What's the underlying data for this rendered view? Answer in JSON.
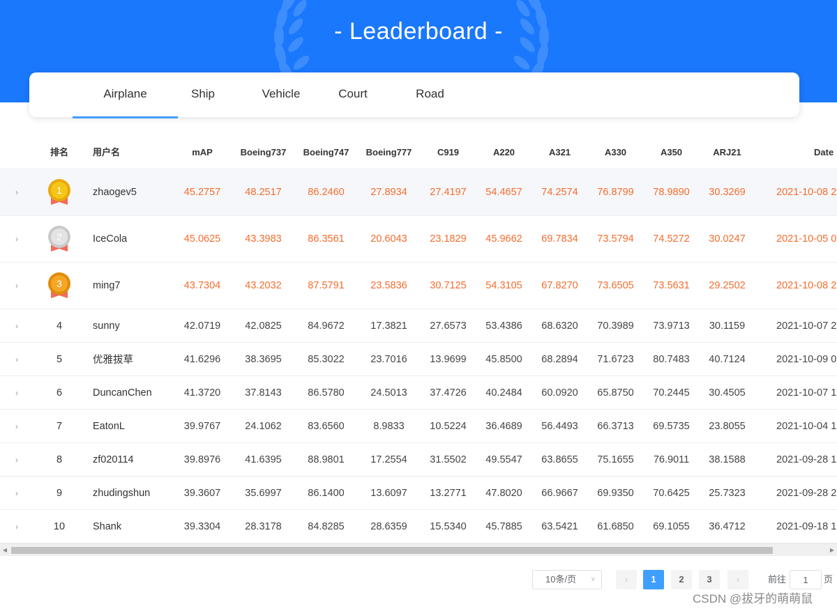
{
  "header": {
    "title": "- Leaderboard -"
  },
  "tabs": [
    {
      "label": "Airplane",
      "active": true
    },
    {
      "label": "Ship",
      "active": false
    },
    {
      "label": "Vehicle",
      "active": false
    },
    {
      "label": "Court",
      "active": false
    },
    {
      "label": "Road",
      "active": false
    }
  ],
  "table": {
    "columns": [
      "排名",
      "用户名",
      "mAP",
      "Boeing737",
      "Boeing747",
      "Boeing777",
      "C919",
      "A220",
      "A321",
      "A330",
      "A350",
      "ARJ21",
      "Date"
    ],
    "medals": [
      {
        "rank": "1",
        "color": "#f5c518",
        "ring": "#e8a90c"
      },
      {
        "rank": "2",
        "color": "#e3e3e3",
        "ring": "#c9c9c9"
      },
      {
        "rank": "3",
        "color": "#f5a623",
        "ring": "#e08c0b"
      }
    ],
    "ribbon_color": "#f26b5b",
    "rows": [
      {
        "rank": "1",
        "user": "zhaogev5",
        "values": [
          "45.2757",
          "48.2517",
          "86.2460",
          "27.8934",
          "27.4197",
          "54.4657",
          "74.2574",
          "76.8799",
          "78.9890",
          "30.3269"
        ],
        "date": "2021-10-08 2"
      },
      {
        "rank": "2",
        "user": "IceCola",
        "values": [
          "45.0625",
          "43.3983",
          "86.3561",
          "20.6043",
          "23.1829",
          "45.9662",
          "69.7834",
          "73.5794",
          "74.5272",
          "30.0247"
        ],
        "date": "2021-10-05 0"
      },
      {
        "rank": "3",
        "user": "ming7",
        "values": [
          "43.7304",
          "43.2032",
          "87.5791",
          "23.5836",
          "30.7125",
          "54.3105",
          "67.8270",
          "73.6505",
          "73.5631",
          "29.2502"
        ],
        "date": "2021-10-08 2"
      },
      {
        "rank": "4",
        "user": "sunny",
        "values": [
          "42.0719",
          "42.0825",
          "84.9672",
          "17.3821",
          "27.6573",
          "53.4386",
          "68.6320",
          "70.3989",
          "73.9713",
          "30.1159"
        ],
        "date": "2021-10-07 2"
      },
      {
        "rank": "5",
        "user": "优雅拔草",
        "values": [
          "41.6296",
          "38.3695",
          "85.3022",
          "23.7016",
          "13.9699",
          "45.8500",
          "68.2894",
          "71.6723",
          "80.7483",
          "40.7124"
        ],
        "date": "2021-10-09 0"
      },
      {
        "rank": "6",
        "user": "DuncanChen",
        "values": [
          "41.3720",
          "37.8143",
          "86.5780",
          "24.5013",
          "37.4726",
          "40.2484",
          "60.0920",
          "65.8750",
          "70.2445",
          "30.4505"
        ],
        "date": "2021-10-07 1"
      },
      {
        "rank": "7",
        "user": "EatonL",
        "values": [
          "39.9767",
          "24.1062",
          "83.6560",
          "8.9833",
          "10.5224",
          "36.4689",
          "56.4493",
          "66.3713",
          "69.5735",
          "23.8055"
        ],
        "date": "2021-10-04 1"
      },
      {
        "rank": "8",
        "user": "zf020114",
        "values": [
          "39.8976",
          "41.6395",
          "88.9801",
          "17.2554",
          "31.5502",
          "49.5547",
          "63.8655",
          "75.1655",
          "76.9011",
          "38.1588"
        ],
        "date": "2021-09-28 1"
      },
      {
        "rank": "9",
        "user": "zhudingshun",
        "values": [
          "39.3607",
          "35.6997",
          "86.1400",
          "13.6097",
          "13.2771",
          "47.8020",
          "66.9667",
          "69.9350",
          "70.6425",
          "25.7323"
        ],
        "date": "2021-09-28 2"
      },
      {
        "rank": "10",
        "user": "Shank",
        "values": [
          "39.3304",
          "28.3178",
          "84.8285",
          "28.6359",
          "15.5340",
          "45.7885",
          "63.5421",
          "61.6850",
          "69.1055",
          "36.4712"
        ],
        "date": "2021-09-18 1"
      }
    ]
  },
  "pagination": {
    "page_size": "10条/页",
    "pages": [
      "1",
      "2",
      "3"
    ],
    "current": "1",
    "goto_label": "前往",
    "goto_value": "1",
    "goto_suffix": "页"
  },
  "watermark": "CSDN @拔牙的萌萌鼠",
  "colors": {
    "header_bg": "#1a78fd",
    "highlight": "#f56c2c",
    "accent": "#409eff"
  }
}
